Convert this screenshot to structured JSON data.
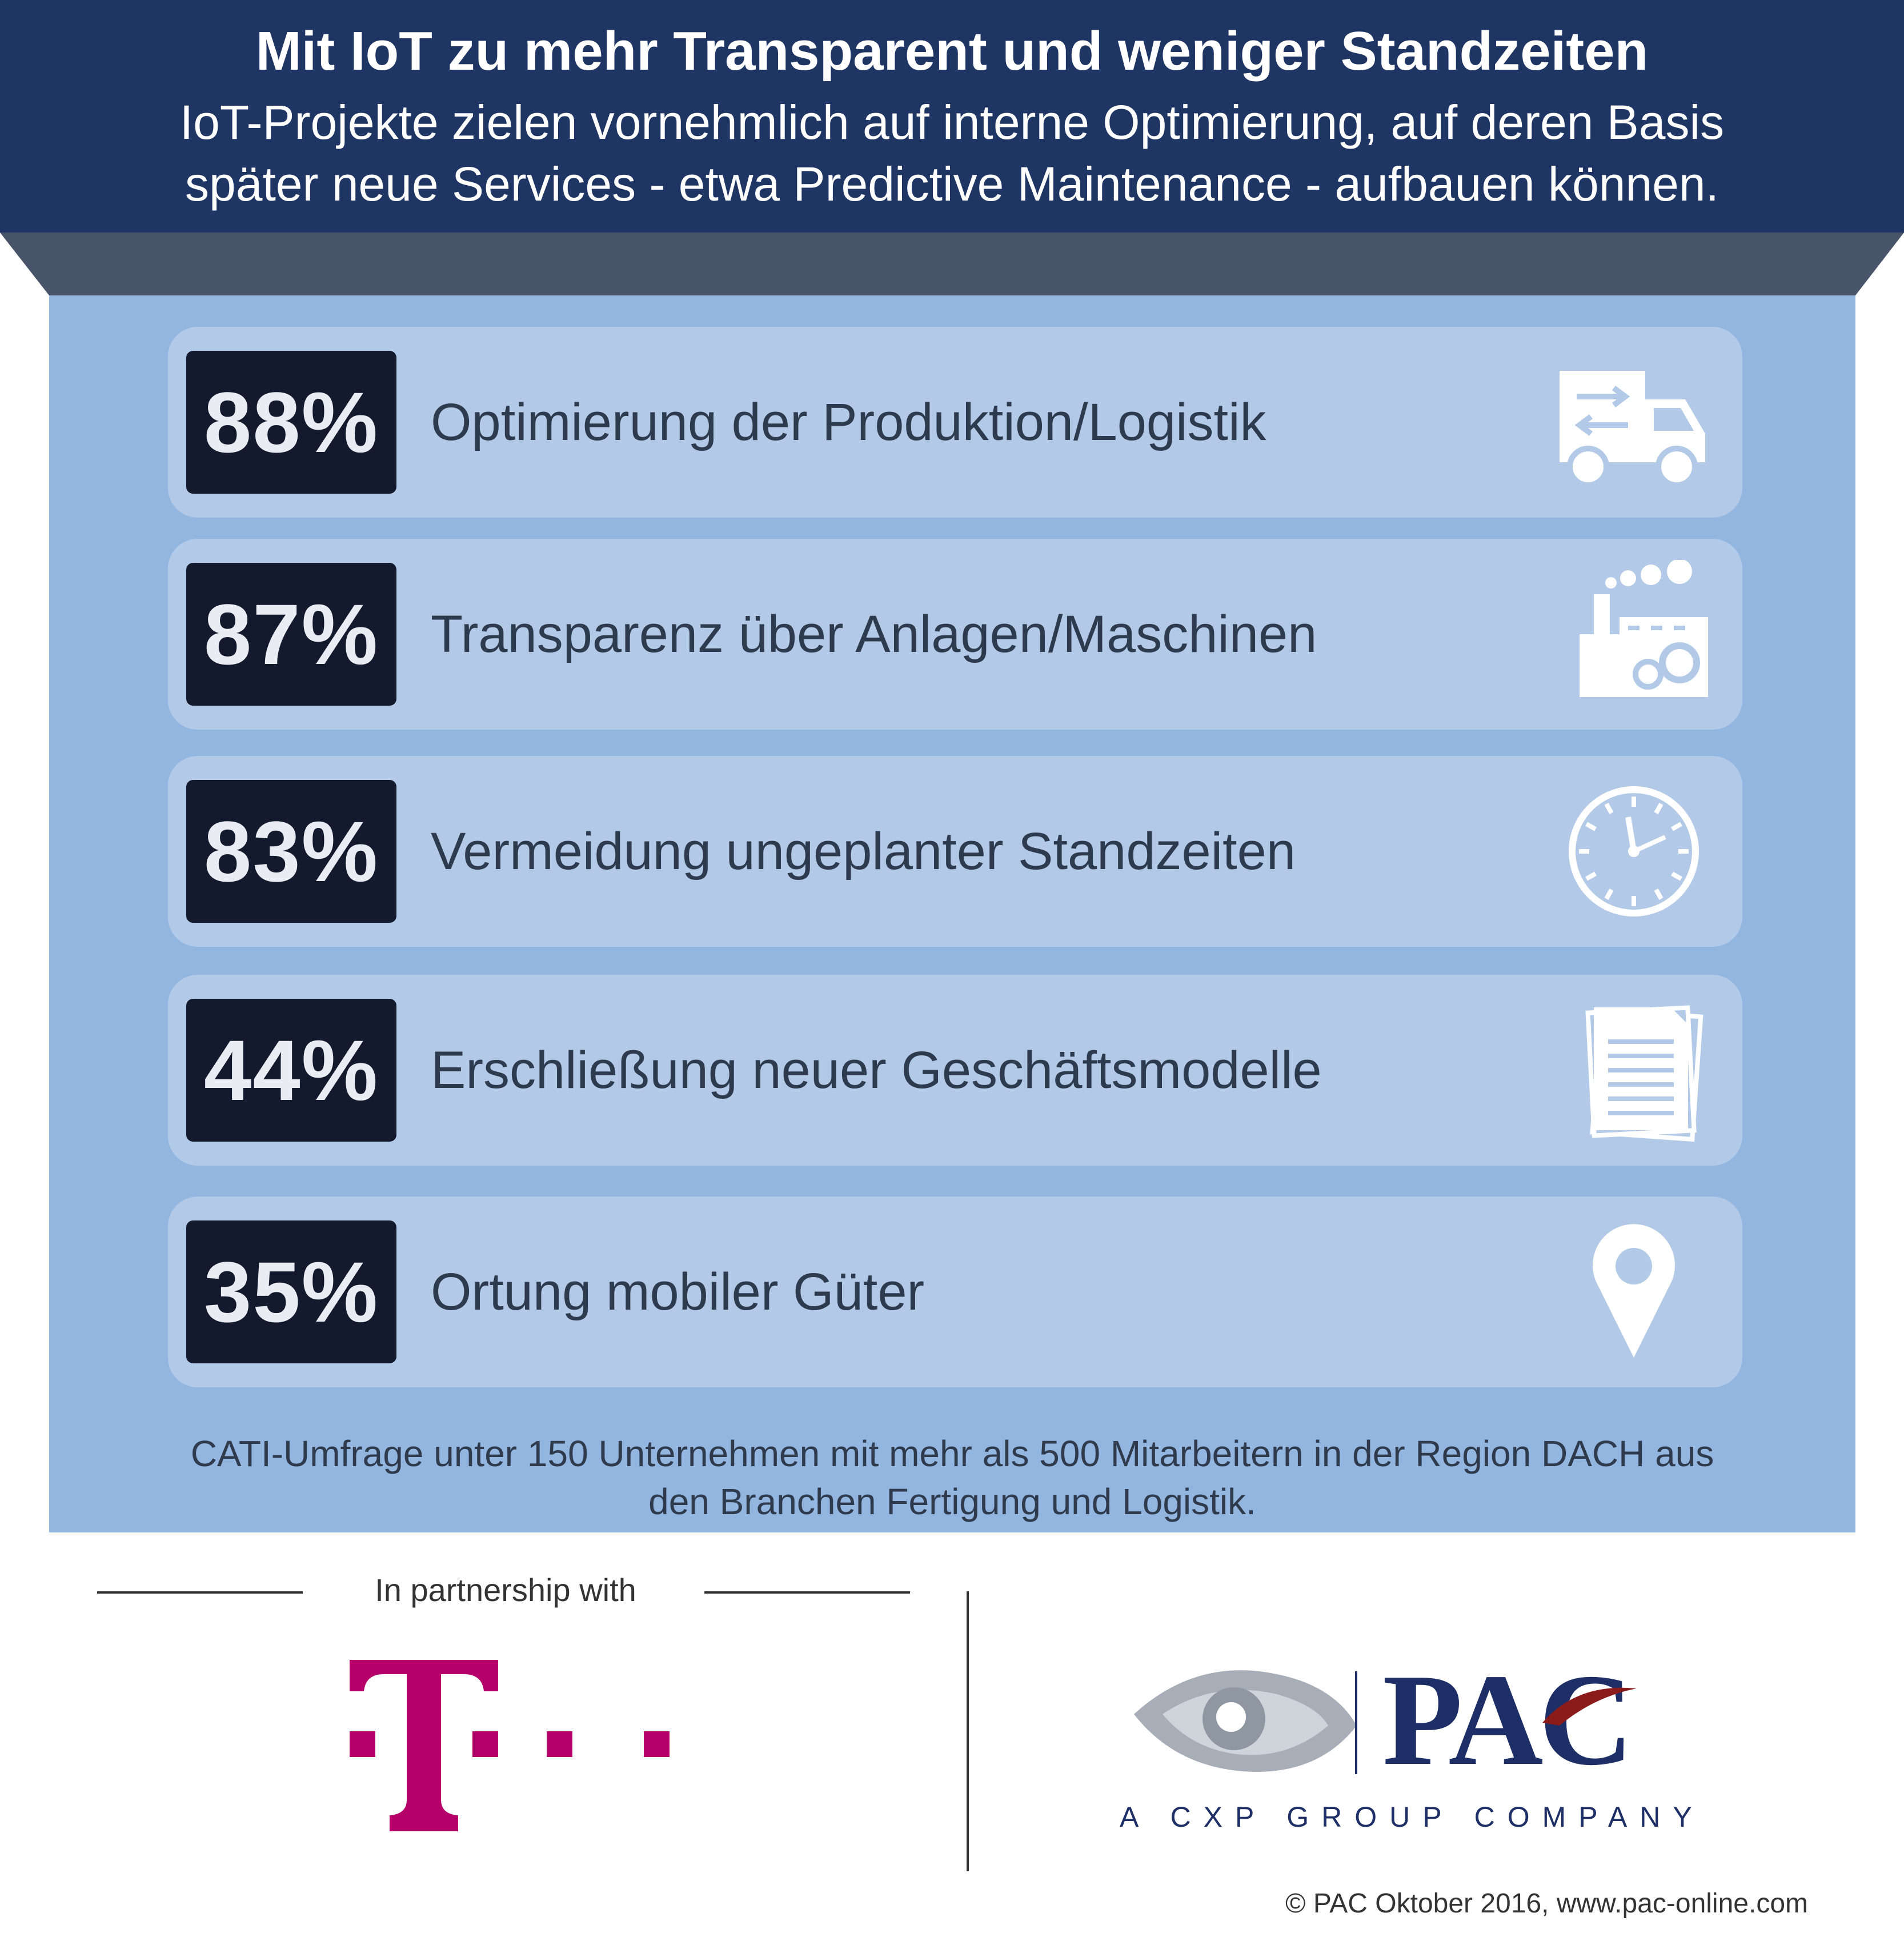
{
  "header": {
    "title": "Mit IoT zu mehr Transparent und weniger Standzeiten",
    "subtitle_line1": "IoT-Projekte zielen vornehmlich auf interne Optimierung, auf deren Basis",
    "subtitle_line2": "später neue Services - etwa Predictive Maintenance - aufbauen können."
  },
  "colors": {
    "header_bg": "#1f3564",
    "panel_bg": "#93b6e0",
    "row_bg": "#b2cae8",
    "percent_box": "#141a2e",
    "telekom_magenta": "#b5006a",
    "pac_blue": "#1d2f66",
    "pac_red": "#8b1a1a"
  },
  "items": [
    {
      "percent": "88%",
      "label": "Optimierung der Produktion/Logistik",
      "icon": "truck-icon"
    },
    {
      "percent": "87%",
      "label": "Transparenz über Anlagen/Maschinen",
      "icon": "factory-icon"
    },
    {
      "percent": "83%",
      "label": "Vermeidung ungeplanter Standzeiten",
      "icon": "clock-icon"
    },
    {
      "percent": "44%",
      "label": "Erschließung neuer Geschäftsmodelle",
      "icon": "documents-icon"
    },
    {
      "percent": "35%",
      "label": "Ortung mobiler Güter",
      "icon": "location-pin-icon"
    }
  ],
  "footnote": {
    "line1": "CATI-Umfrage unter 150 Unternehmen mit mehr als 500 Mitarbeitern in der Region DACH aus",
    "line2": "den Branchen Fertigung und Logistik."
  },
  "partner": {
    "label": "In partnership with",
    "telekom_logo": "T · ·",
    "pac_name": "PAC",
    "pac_tagline": "A CXP GROUP COMPANY"
  },
  "copyright": "© PAC Oktober 2016, www.pac-online.com"
}
